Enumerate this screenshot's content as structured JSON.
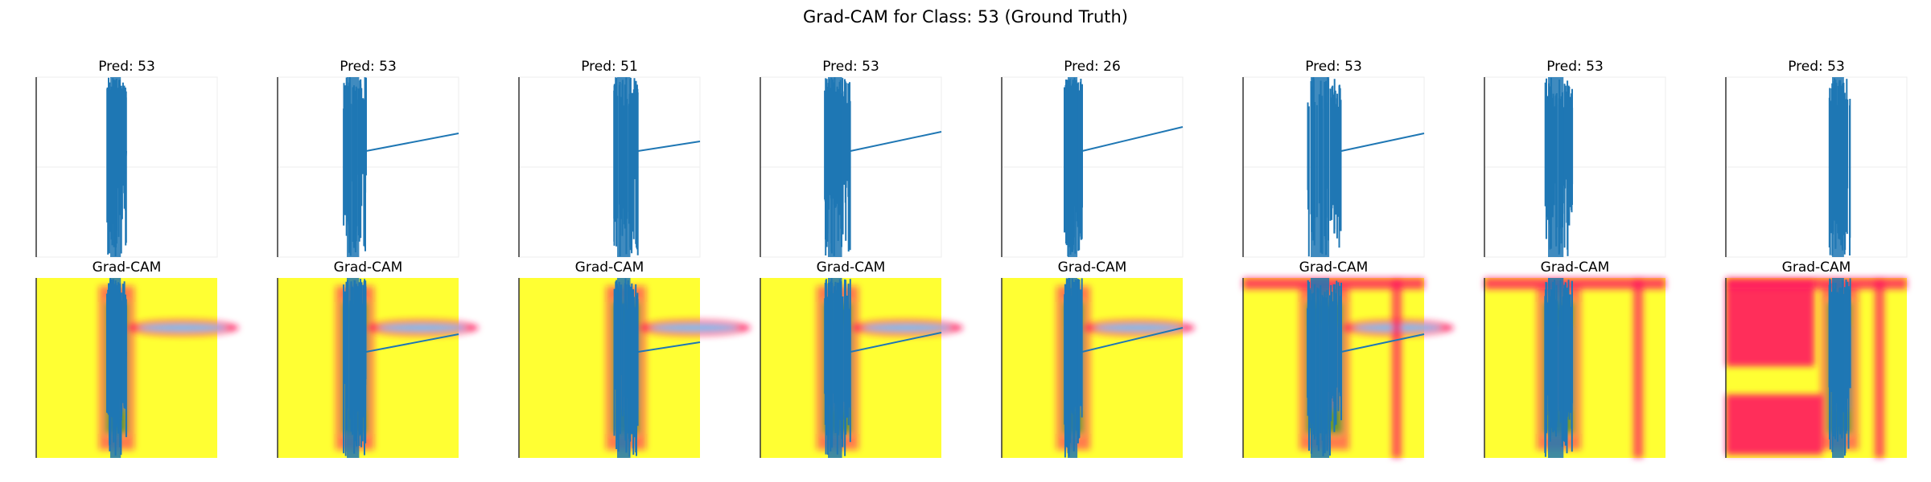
{
  "figure": {
    "suptitle": "Grad-CAM for Class: 53 (Ground Truth)"
  },
  "colors": {
    "signal": "#1f77b4",
    "cam_high": "#ffff33",
    "cam_mid_green": "#2ca02c",
    "cam_mid_violet": "#7b68ee",
    "cam_mid_cyan": "#66ccff",
    "cam_low": "#ff1a5e"
  },
  "chart_data": {
    "type": "grid",
    "rows": 2,
    "columns": 8,
    "top_row_kind": "signal plot",
    "bottom_row_kind": "Grad-CAM heatmap overlay",
    "bottom_titles": [
      "Grad-CAM",
      "Grad-CAM",
      "Grad-CAM",
      "Grad-CAM",
      "Grad-CAM",
      "Grad-CAM",
      "Grad-CAM",
      "Grad-CAM"
    ],
    "predictions": [
      {
        "title": "Pred: 53",
        "value": 53
      },
      {
        "title": "Pred: 53",
        "value": 53
      },
      {
        "title": "Pred: 51",
        "value": 51
      },
      {
        "title": "Pred: 53",
        "value": 53
      },
      {
        "title": "Pred: 26",
        "value": 26
      },
      {
        "title": "Pred: 53",
        "value": 53
      },
      {
        "title": "Pred: 53",
        "value": 53
      },
      {
        "title": "Pred: 53",
        "value": 53
      }
    ],
    "axes_visible": false
  }
}
